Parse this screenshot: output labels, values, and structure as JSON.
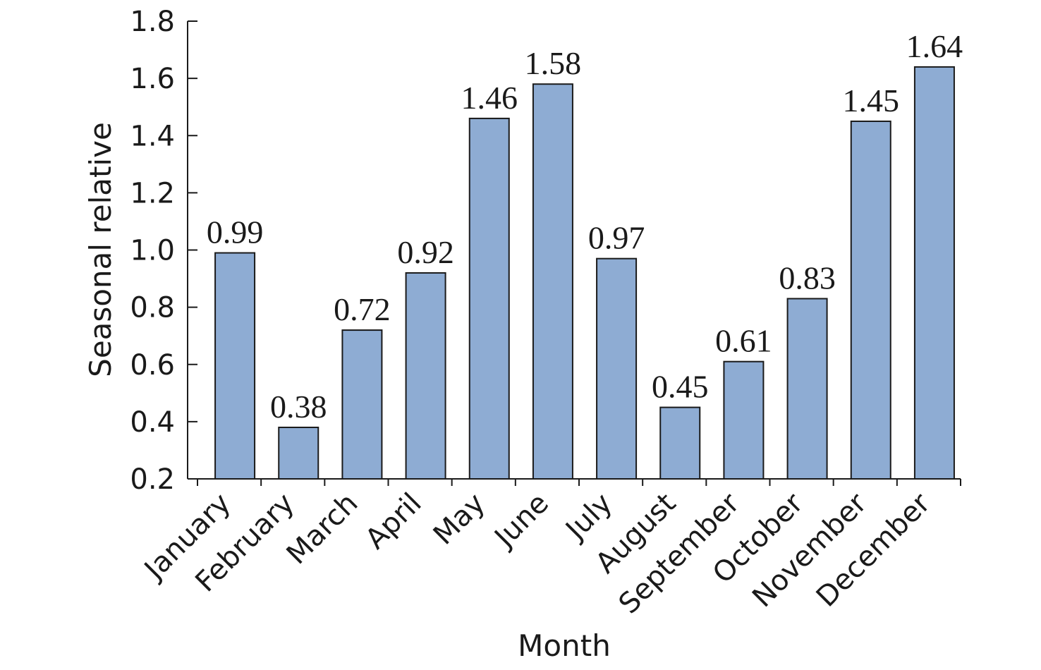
{
  "chart_data": {
    "type": "bar",
    "categories": [
      "January",
      "February",
      "March",
      "April",
      "May",
      "June",
      "July",
      "August",
      "September",
      "October",
      "November",
      "December"
    ],
    "values": [
      0.99,
      0.38,
      0.72,
      0.92,
      1.46,
      1.58,
      0.97,
      0.45,
      0.61,
      0.83,
      1.45,
      1.64
    ],
    "data_labels": [
      "0.99",
      "0.38",
      "0.72",
      "0.92",
      "1.46",
      "1.58",
      "0.97",
      "0.45",
      "0.61",
      "0.83",
      "1.45",
      "1.64"
    ],
    "xlabel": "Month",
    "ylabel": "Seasonal relative",
    "ylim": [
      0.2,
      1.8
    ],
    "yticks": [
      "0.2",
      "0.4",
      "0.6",
      "0.8",
      "1.0",
      "1.2",
      "1.4",
      "1.6",
      "1.8"
    ],
    "grid": false,
    "bar_color": "#8eacd3",
    "bar_edge_color": "#1a1a1a"
  }
}
